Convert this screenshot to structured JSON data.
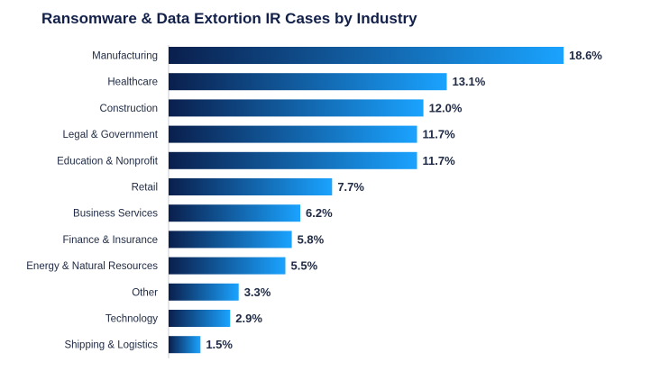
{
  "chart_data": {
    "type": "bar",
    "orientation": "horizontal",
    "title": "Ransomware & Data Extortion IR Cases by Industry",
    "categories": [
      "Manufacturing",
      "Healthcare",
      "Construction",
      "Legal & Government",
      "Education & Nonprofit",
      "Retail",
      "Business Services",
      "Finance & Insurance",
      "Energy & Natural Resources",
      "Other",
      "Technology",
      "Shipping & Logistics"
    ],
    "values": [
      18.6,
      13.1,
      12.0,
      11.7,
      11.7,
      7.7,
      6.2,
      5.8,
      5.5,
      3.3,
      2.9,
      1.5
    ],
    "value_labels": [
      "18.6%",
      "13.1%",
      "12.0%",
      "11.7%",
      "11.7%",
      "7.7%",
      "6.2%",
      "5.8%",
      "5.5%",
      "3.3%",
      "2.9%",
      "1.5%"
    ],
    "unit": "%",
    "xlim": [
      0,
      18.6
    ],
    "grid": false,
    "legend": "none",
    "colors": {
      "bar_gradient_start": "#0a1f4d",
      "bar_gradient_end": "#1aa3ff",
      "title": "#12204a",
      "text": "#1f2a44",
      "axis": "#c9ccd3"
    }
  }
}
